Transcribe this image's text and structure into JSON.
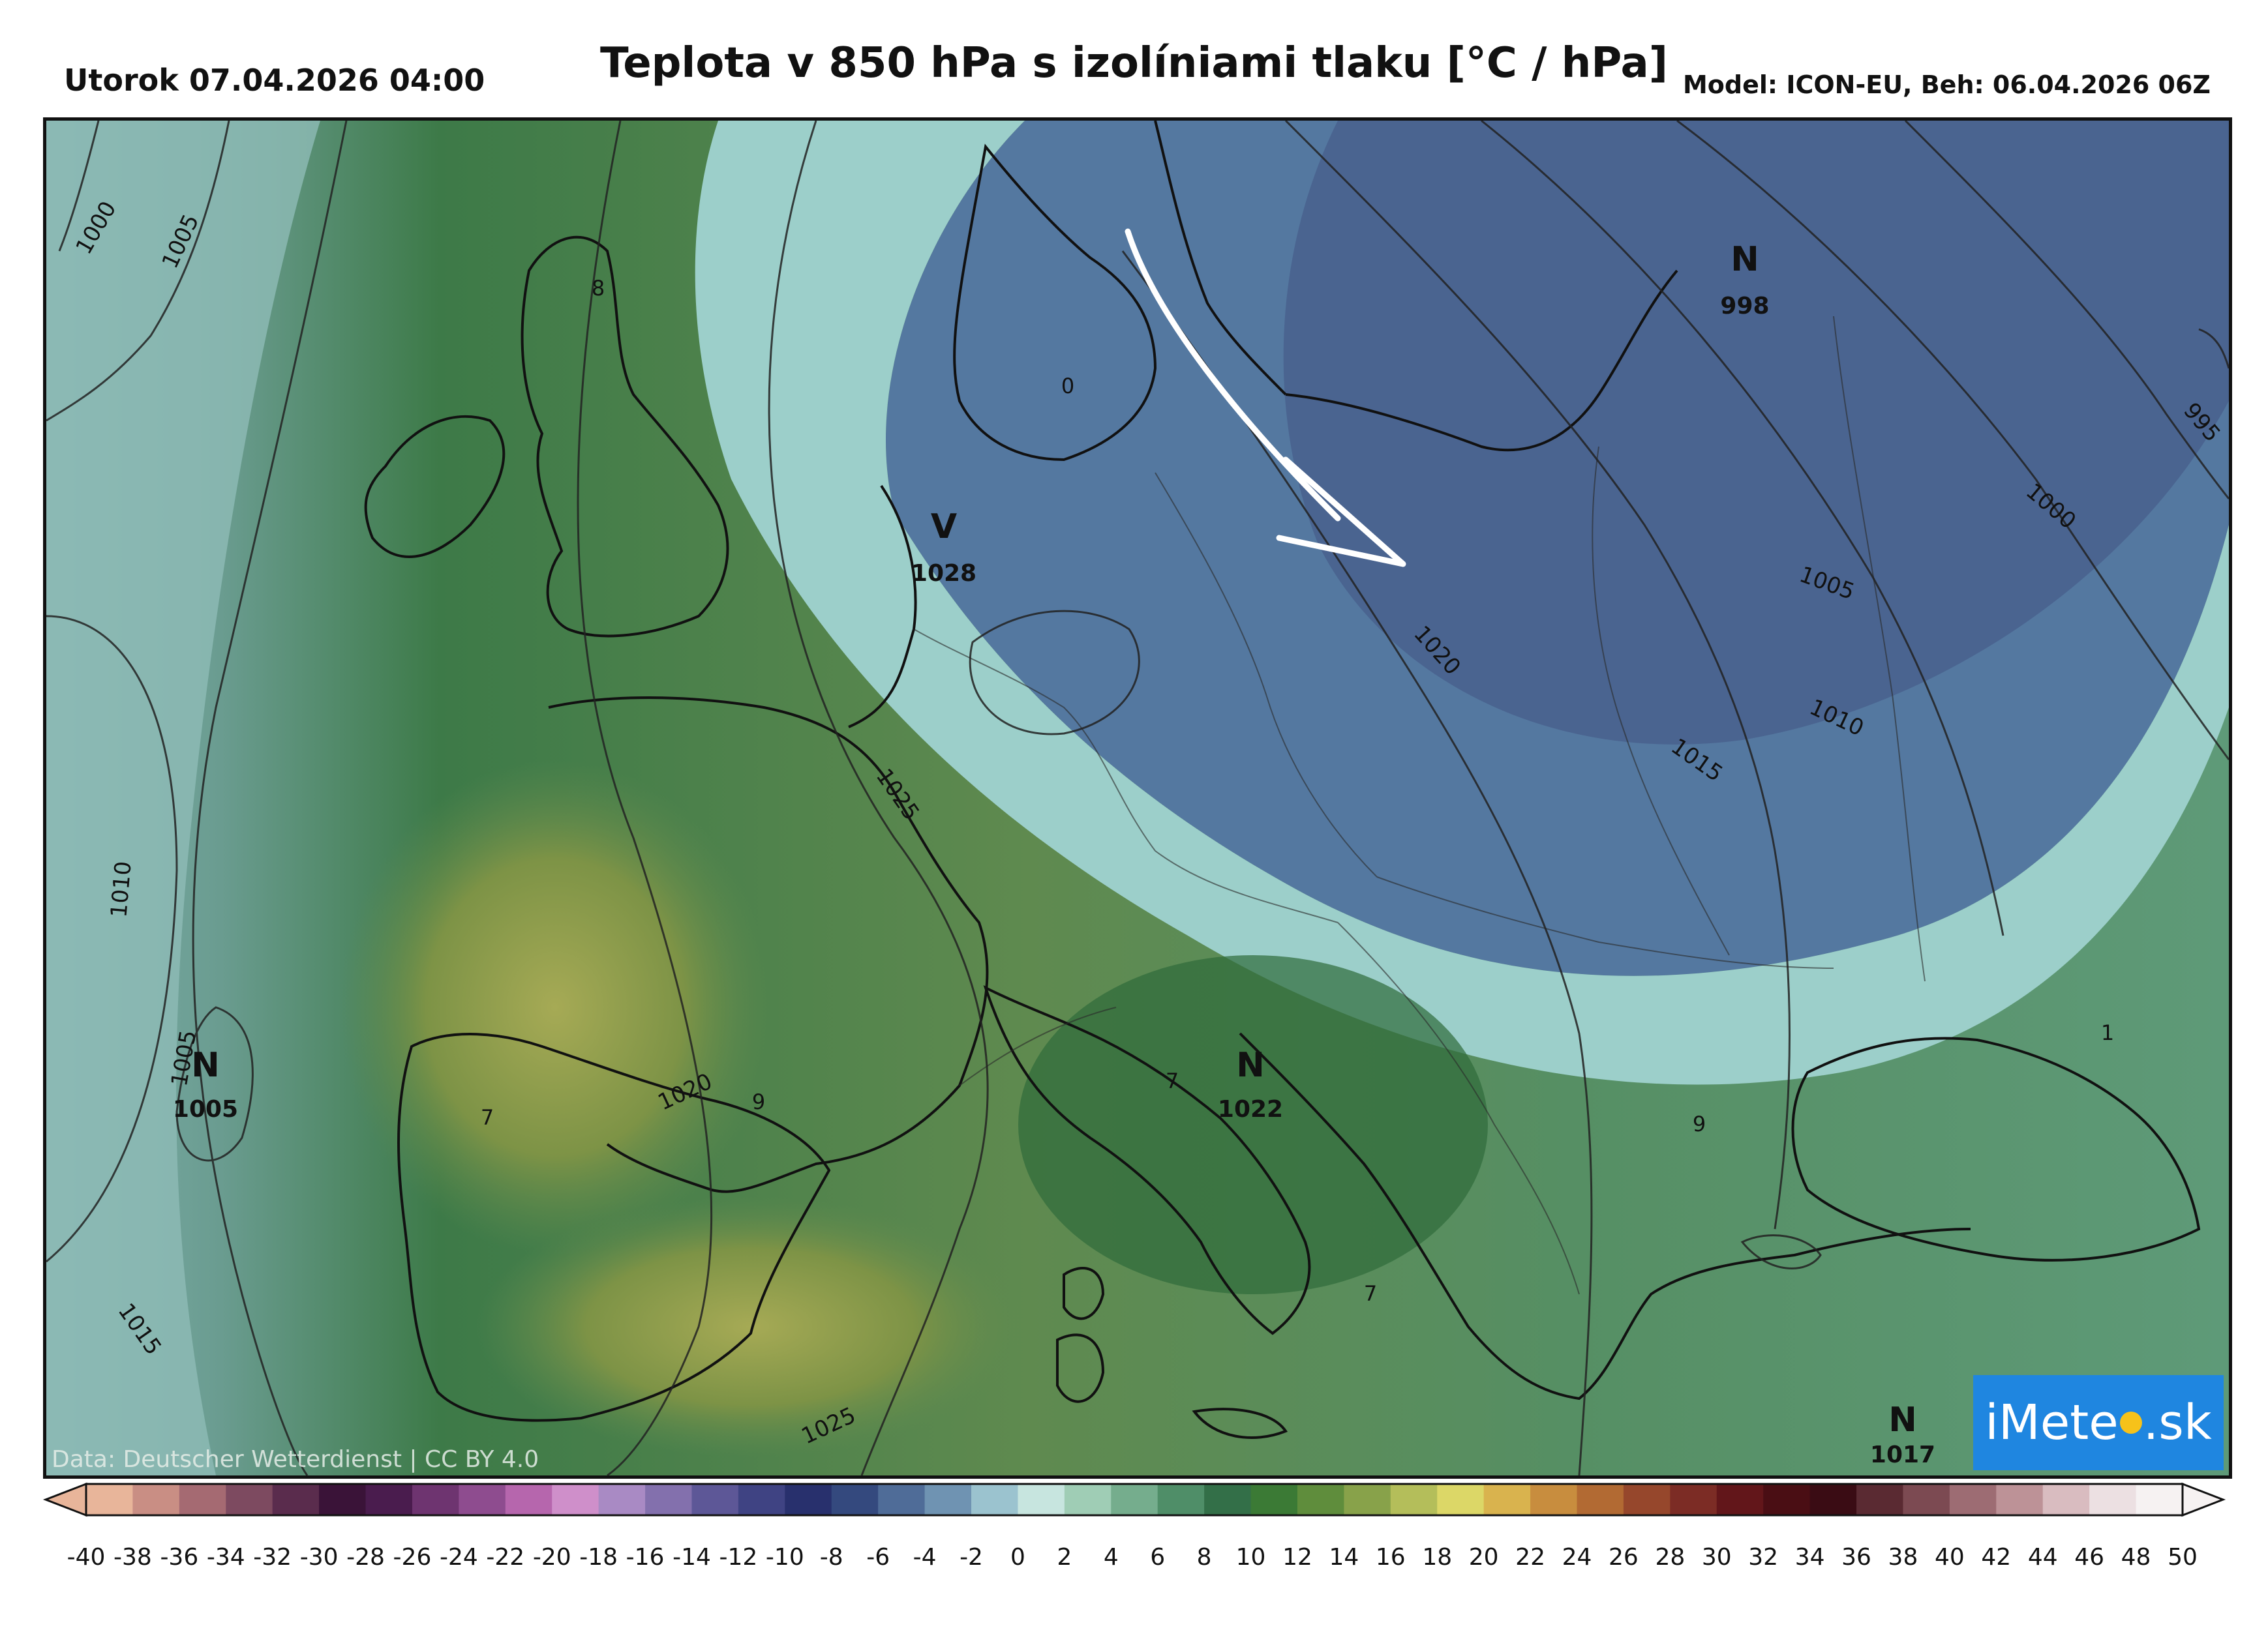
{
  "header": {
    "date": "Utorok 07.04.2026 04:00",
    "title": "Teplota v 850 hPa s izolíniami tlaku [°C / hPa]",
    "model": "Model: ICON-EU, Beh: 06.04.2026 06Z"
  },
  "pressure_centers": [
    {
      "type": "V",
      "value": "1028"
    },
    {
      "type": "N",
      "value": "998"
    },
    {
      "type": "N",
      "value": "1005"
    },
    {
      "type": "N",
      "value": "1022"
    },
    {
      "type": "N",
      "value": "1017"
    }
  ],
  "isobar_labels": [
    "1000",
    "1005",
    "1010",
    "1005",
    "1015",
    "1025",
    "1020",
    "1025",
    "1020",
    "1005",
    "1010",
    "1015",
    "1000",
    "995"
  ],
  "temperature_labels": [
    "8",
    "0",
    "7",
    "9",
    "7",
    "7",
    "9",
    "1"
  ],
  "credit": "Data: Deutscher Wetterdienst | CC BY 4.0",
  "logo": {
    "left": "iMete",
    "right": ".sk"
  },
  "colorbar": {
    "ticks": [
      "-40",
      "-38",
      "-36",
      "-34",
      "-32",
      "-30",
      "-28",
      "-26",
      "-24",
      "-22",
      "-20",
      "-18",
      "-16",
      "-14",
      "-12",
      "-10",
      "-8",
      "-6",
      "-4",
      "-2",
      "0",
      "2",
      "4",
      "6",
      "8",
      "10",
      "12",
      "14",
      "16",
      "18",
      "20",
      "22",
      "24",
      "26",
      "28",
      "30",
      "32",
      "34",
      "36",
      "38",
      "40",
      "42",
      "44",
      "46",
      "48",
      "50"
    ],
    "colors": [
      "#e8b59a",
      "#c98e84",
      "#a56a72",
      "#7d4a60",
      "#5a2c4d",
      "#3a1338",
      "#4a1c4e",
      "#6e3470",
      "#8e4c8f",
      "#b666ad",
      "#cf8fca",
      "#a98ac4",
      "#8370ad",
      "#5d5797",
      "#3f4383",
      "#28306d",
      "#34497e",
      "#4f6c98",
      "#6f93b2",
      "#9bc3cf",
      "#c7e5df",
      "#9fcdb5",
      "#75ad8d",
      "#4f8e68",
      "#336f48",
      "#3b7a35",
      "#5f8d3c",
      "#88a24a",
      "#b4be5a",
      "#dcd767",
      "#d9b34e",
      "#c88d3e",
      "#b26a33",
      "#96472c",
      "#7c2c25",
      "#62161a",
      "#4a0e14",
      "#3a0c14",
      "#5a2a32",
      "#7c4a52",
      "#9d6c73",
      "#bd9297",
      "#d9bcc0",
      "#ece0e2",
      "#f6f2f2"
    ]
  },
  "colors": {
    "border": "#111111",
    "logo_bg": "#1f86e0",
    "arrow": "#ffffff"
  }
}
